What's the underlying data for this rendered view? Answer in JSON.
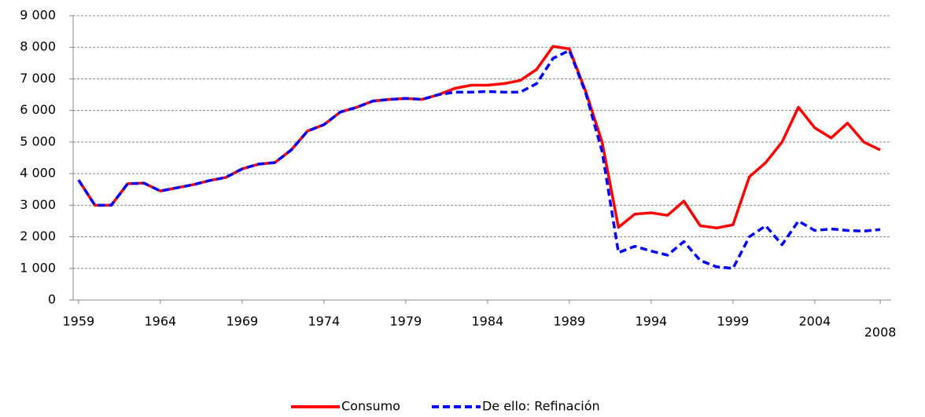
{
  "chart_data": {
    "type": "line",
    "x": [
      1959,
      1960,
      1961,
      1962,
      1963,
      1964,
      1965,
      1966,
      1967,
      1968,
      1969,
      1970,
      1971,
      1972,
      1973,
      1974,
      1975,
      1976,
      1977,
      1978,
      1979,
      1980,
      1981,
      1982,
      1983,
      1984,
      1985,
      1986,
      1987,
      1988,
      1989,
      1990,
      1991,
      1992,
      1993,
      1994,
      1995,
      1996,
      1997,
      1998,
      1999,
      2000,
      2001,
      2002,
      2003,
      2004,
      2005,
      2006,
      2007,
      2008
    ],
    "series": [
      {
        "name": "Consumo",
        "color": "#ff0000",
        "dash": false,
        "values": [
          3800,
          3000,
          3000,
          3680,
          3700,
          3450,
          3550,
          3650,
          3780,
          3880,
          4150,
          4300,
          4350,
          4750,
          5350,
          5550,
          5950,
          6100,
          6300,
          6350,
          6380,
          6350,
          6500,
          6700,
          6800,
          6800,
          6850,
          6950,
          7300,
          8030,
          7950,
          6600,
          5000,
          2300,
          2720,
          2760,
          2680,
          3130,
          2350,
          2280,
          2380,
          3900,
          4350,
          5000,
          6100,
          5450,
          5130,
          5600,
          5000,
          4750
        ]
      },
      {
        "name": "De ello: Refinación",
        "color": "#0000ff",
        "dash": true,
        "values": [
          3800,
          3000,
          3000,
          3680,
          3700,
          3450,
          3550,
          3650,
          3780,
          3880,
          4150,
          4300,
          4350,
          4750,
          5350,
          5550,
          5950,
          6100,
          6300,
          6350,
          6380,
          6350,
          6500,
          6580,
          6580,
          6600,
          6580,
          6580,
          6850,
          7650,
          7900,
          6550,
          4700,
          1500,
          1700,
          1550,
          1420,
          1850,
          1250,
          1050,
          1000,
          2000,
          2350,
          1750,
          2500,
          2200,
          2250,
          2200,
          2180,
          2230
        ]
      }
    ],
    "xlim": [
      1958.67,
      2008.67
    ],
    "xticks": [
      1959,
      1964,
      1969,
      1974,
      1979,
      1984,
      1989,
      1994,
      1999,
      2004,
      2008
    ],
    "ylim": [
      0,
      9000
    ],
    "yticks": [
      0,
      {
        "value": 1000,
        "label": "1 000"
      },
      {
        "value": 2000,
        "label": "2 000"
      },
      {
        "value": 3000,
        "label": "3 000"
      },
      {
        "value": 4000,
        "label": "4 000"
      },
      {
        "value": 5000,
        "label": "5 000"
      },
      {
        "value": 6000,
        "label": "6 000"
      },
      {
        "value": 7000,
        "label": "7 000"
      },
      {
        "value": 8000,
        "label": "8 000"
      },
      {
        "value": 9000,
        "label": "9 000"
      }
    ],
    "grid": true,
    "legend": "bottom"
  }
}
